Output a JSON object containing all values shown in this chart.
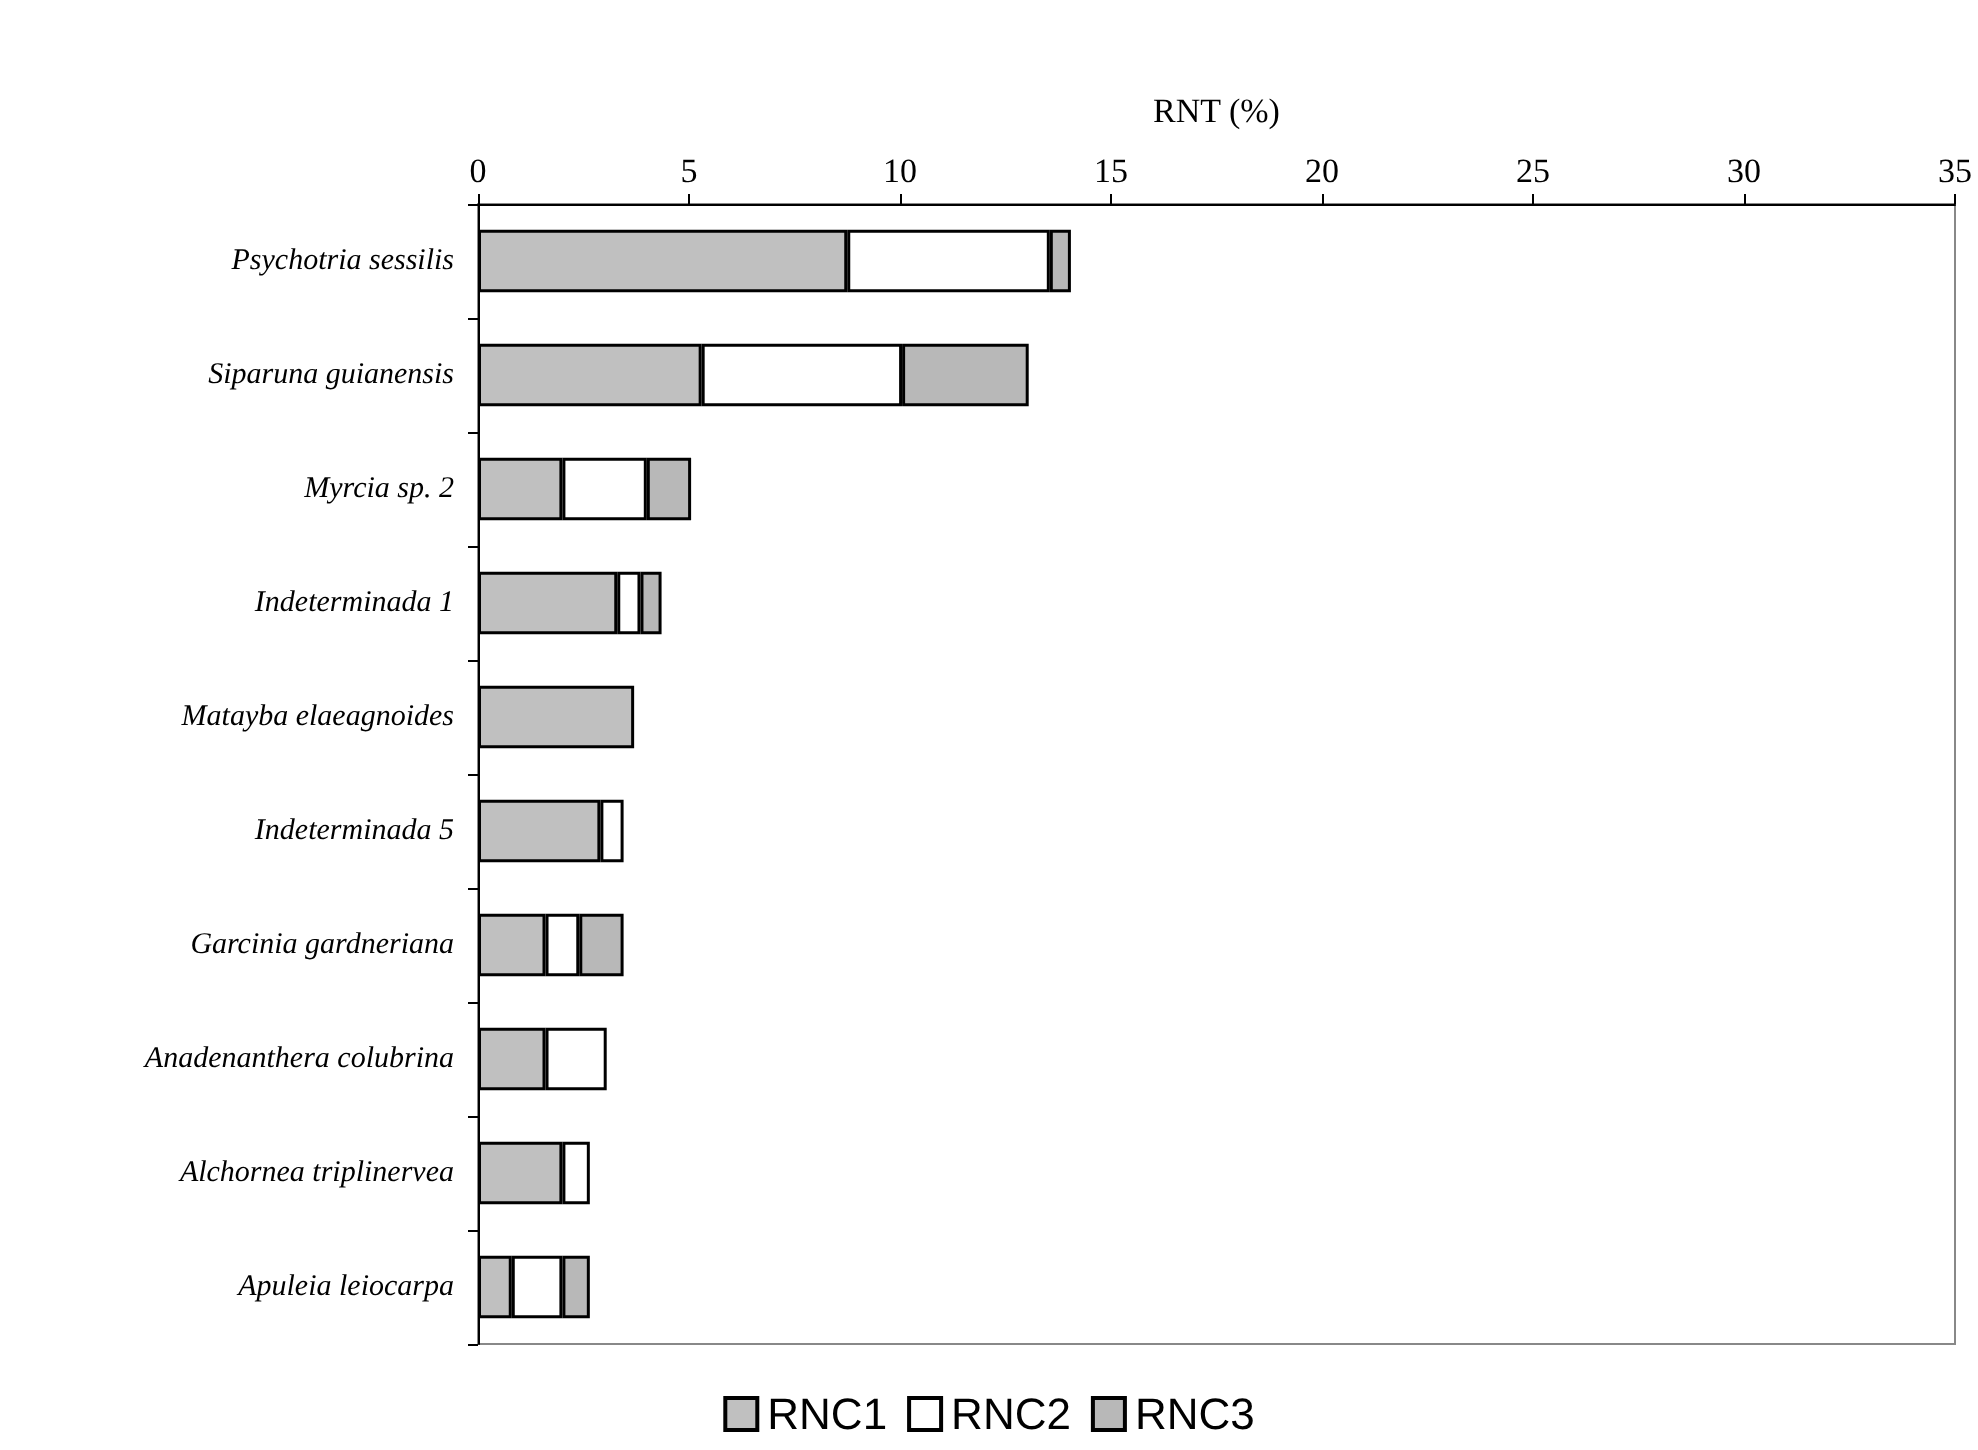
{
  "chart_data": {
    "type": "bar",
    "orientation": "horizontal",
    "stacked": true,
    "xlabel": "RNT (%)",
    "categories": [
      "Psychotria sessilis",
      "Siparuna guianensis",
      "Myrcia sp. 2",
      "Indeterminada 1",
      "Matayba elaeagnoides",
      "Indeterminada 5",
      "Garcinia gardneriana",
      "Anadenanthera colubrina",
      "Alchornea triplinervea",
      "Apuleia leiocarpa"
    ],
    "series": [
      {
        "name": "RNC1",
        "color": "#c0c0c0",
        "values": [
          8.75,
          5.3,
          2.0,
          3.3,
          3.7,
          2.9,
          1.6,
          1.6,
          2.0,
          0.8
        ]
      },
      {
        "name": "RNC2",
        "color": "#ffffff",
        "values": [
          4.8,
          4.75,
          2.0,
          0.55,
          null,
          0.55,
          0.8,
          1.45,
          0.65,
          1.2
        ]
      },
      {
        "name": "RNC3",
        "color": "#b8b8b8",
        "values": [
          0.5,
          3.0,
          1.05,
          0.5,
          null,
          null,
          1.05,
          null,
          null,
          0.65
        ]
      }
    ],
    "xlim": [
      0,
      35
    ],
    "xticks": [
      0,
      5,
      10,
      15,
      20,
      25,
      30,
      35
    ],
    "grid": false,
    "legend": "bottom"
  }
}
